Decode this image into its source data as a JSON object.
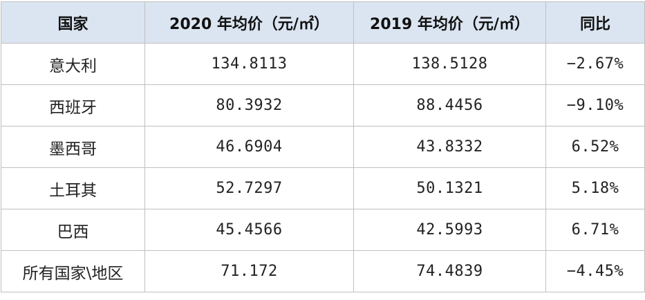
{
  "table": {
    "headers": [
      "国家",
      "2020 年均价（元/㎡）",
      "2019 年均价（元/㎡）",
      "同比"
    ],
    "rows": [
      [
        "意大利",
        "134.8113",
        "138.5128",
        "−2.67%"
      ],
      [
        "西班牙",
        "80.3932",
        "88.4456",
        "−9.10%"
      ],
      [
        "墨西哥",
        "46.6904",
        "43.8332",
        "6.52%"
      ],
      [
        "土耳其",
        "52.7297",
        "50.1321",
        "5.18%"
      ],
      [
        "巴西",
        "45.4566",
        "42.5993",
        "6.71%"
      ],
      [
        "所有国家\\地区",
        "71.172",
        "74.4839",
        "−4.45%"
      ]
    ]
  },
  "colors": {
    "header_bg": "#dbe5f1",
    "border": "#bfbfbf"
  }
}
